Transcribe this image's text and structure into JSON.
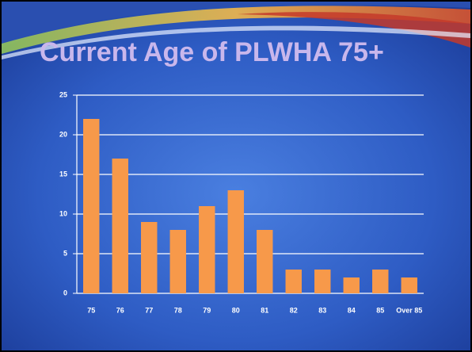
{
  "chart_data": {
    "type": "bar",
    "title": "Current Age of PLWHA 75+",
    "categories": [
      "75",
      "76",
      "77",
      "78",
      "79",
      "80",
      "81",
      "82",
      "83",
      "84",
      "85",
      "Over 85"
    ],
    "values": [
      22,
      17,
      9,
      8,
      11,
      13,
      8,
      3,
      3,
      2,
      3,
      2
    ],
    "color": "#f7994a",
    "ylim": [
      0,
      25
    ],
    "yticks": [
      0,
      5,
      10,
      15,
      20,
      25
    ],
    "grid": true
  }
}
